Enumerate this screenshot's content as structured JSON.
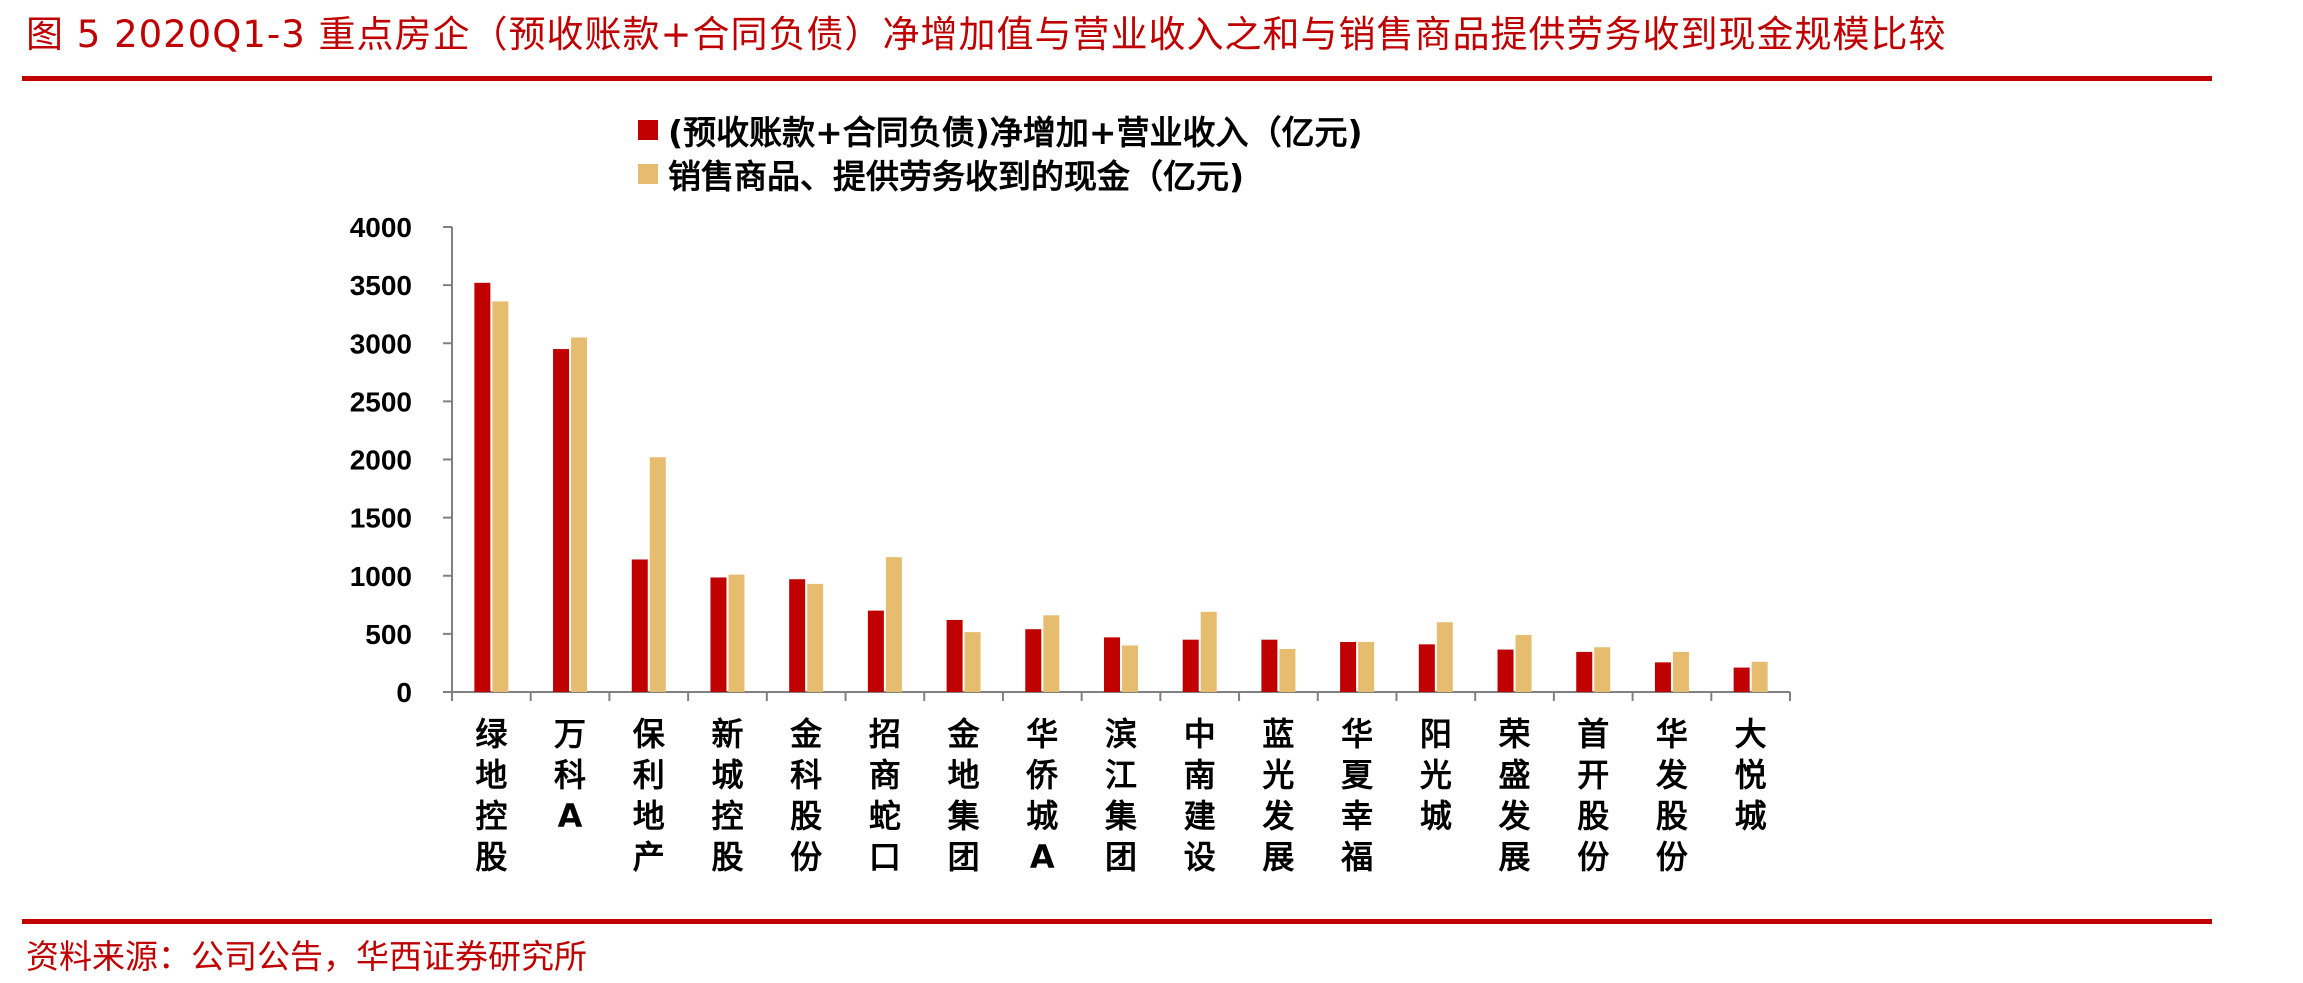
{
  "figure_title": "图 5   2020Q1-3 重点房企（预收账款+合同负债）净增加值与营业收入之和与销售商品提供劳务收到现金规模比较",
  "source": "资料来源：公司公告，华西证券研究所",
  "colors": {
    "accent": "#c00000",
    "series1": "#c00000",
    "series2": "#e6bd6e"
  },
  "chart_data": {
    "type": "bar",
    "categories": [
      "绿地控股",
      "万科A",
      "保利地产",
      "新城控股",
      "金科股份",
      "招商蛇口",
      "金地集团",
      "华侨城A",
      "滨江集团",
      "中南建设",
      "蓝光发展",
      "华夏幸福",
      "阳光城",
      "荣盛发展",
      "首开股份",
      "华发股份",
      "大悦城"
    ],
    "series": [
      {
        "name": "(预收账款+合同负债)净增加+营业收入（亿元)",
        "values": [
          3520,
          2950,
          1140,
          985,
          970,
          700,
          620,
          540,
          470,
          450,
          450,
          430,
          410,
          365,
          345,
          255,
          210
        ]
      },
      {
        "name": "销售商品、提供劳务收到的现金（亿元)",
        "values": [
          3360,
          3050,
          2020,
          1010,
          930,
          1160,
          515,
          660,
          400,
          690,
          370,
          430,
          600,
          490,
          385,
          345,
          260
        ]
      }
    ],
    "ylim": [
      0,
      4000
    ],
    "yticks": [
      "0",
      "500",
      "1000",
      "1500",
      "2000",
      "2500",
      "3000",
      "3500",
      "4000"
    ],
    "legend_position": "top",
    "grid": false,
    "title": "",
    "xlabel": "",
    "ylabel": ""
  }
}
